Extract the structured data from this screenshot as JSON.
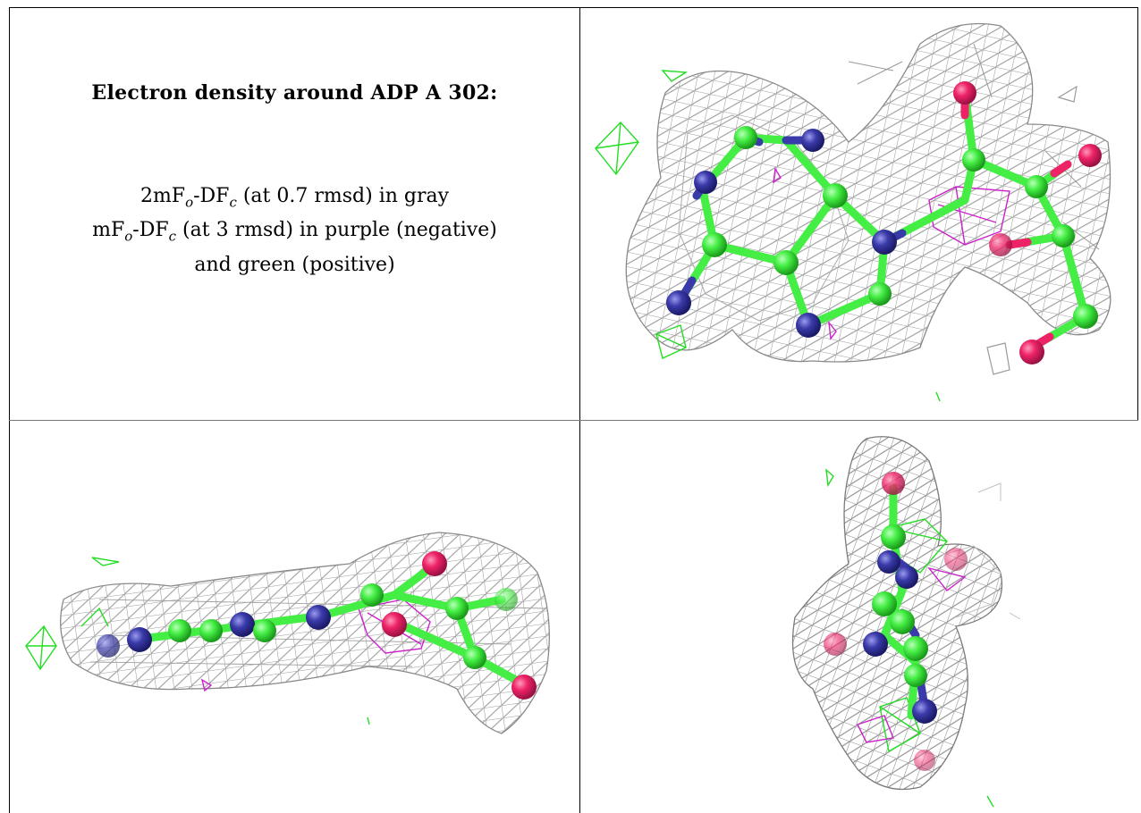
{
  "title": "Electron density around ADP A 302:",
  "legend": {
    "line1_prefix": "2mF",
    "line1_sub_o": "o",
    "line1_mid": "-DF",
    "line1_sub_c": "c",
    "line1_suffix": " (at 0.7 rmsd) in gray",
    "line2_prefix": "mF",
    "line2_sub_o": "o",
    "line2_mid": "-DF",
    "line2_sub_c": "c",
    "line2_suffix": " (at 3 rmsd) in purple (negative)",
    "line3": "and green (positive)"
  },
  "colors": {
    "mesh_gray": "#9a9a9a",
    "mesh_green": "#22dd22",
    "mesh_purple": "#cc22cc",
    "carbon": "#44ee44",
    "nitrogen": "#3a3aaa",
    "oxygen": "#ee2266"
  }
}
